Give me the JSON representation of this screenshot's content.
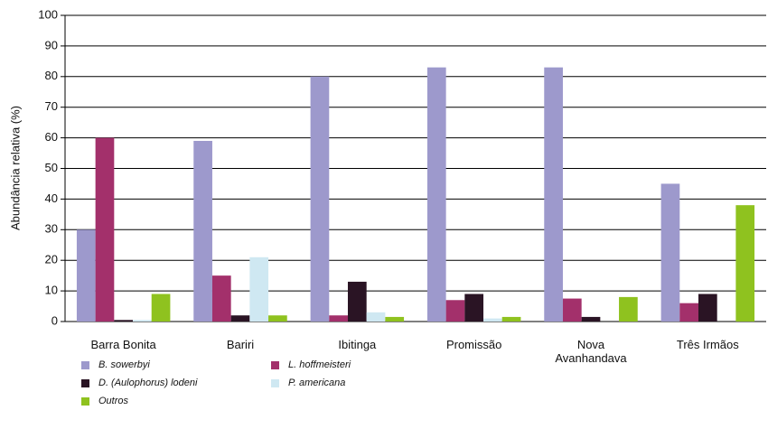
{
  "chart_data": {
    "type": "bar",
    "y_label": "Abundância relativa (%)",
    "categories": [
      "Barra Bonita",
      "Bariri",
      "Ibitinga",
      "Promissão",
      "Nova Avanhandava",
      "Três Irmãos"
    ],
    "series": [
      {
        "name": "B. sowerbyi",
        "color": "#9d99cc",
        "values": [
          30,
          59,
          80,
          83,
          83,
          45
        ]
      },
      {
        "name": "L. hoffmeisteri",
        "color": "#a3306b",
        "values": [
          60,
          15,
          2,
          7,
          7.5,
          6
        ]
      },
      {
        "name": "D. (Aulophorus) lodeni",
        "color": "#2a1424",
        "values": [
          0.5,
          2,
          13,
          9,
          1.5,
          9
        ]
      },
      {
        "name": "P. americana",
        "color": "#cfe8f2",
        "values": [
          0.5,
          21,
          3,
          1,
          0,
          0
        ]
      },
      {
        "name": "Outros",
        "color": "#8fc21f",
        "values": [
          9,
          2,
          1.5,
          1.5,
          8,
          38
        ]
      }
    ],
    "ylim": [
      0,
      100
    ],
    "yticks": [
      0,
      10,
      20,
      30,
      40,
      50,
      60,
      70,
      80,
      90,
      100
    ],
    "grid": true
  }
}
